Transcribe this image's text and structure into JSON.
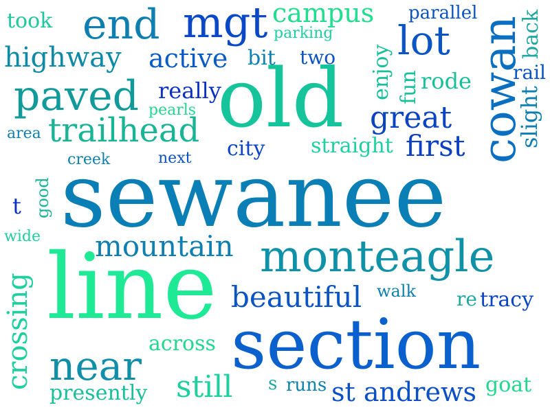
{
  "words": [
    {
      "text": "sewanee",
      "color": "#0a7fb5"
    },
    {
      "text": "line",
      "color": "#1eea96"
    },
    {
      "text": "section",
      "color": "#0a60cc"
    },
    {
      "text": "old",
      "color": "#15c49a"
    },
    {
      "text": "monteagle",
      "color": "#0f91a8"
    },
    {
      "text": "cowan",
      "color": "#0a6fc0"
    },
    {
      "text": "end",
      "color": "#0e7fb0"
    },
    {
      "text": "mgt",
      "color": "#0b48c8"
    },
    {
      "text": "lot",
      "color": "#0a54c4"
    },
    {
      "text": "paved",
      "color": "#129a9a"
    },
    {
      "text": "trailhead",
      "color": "#18b495"
    },
    {
      "text": "near",
      "color": "#118fa8"
    },
    {
      "text": "crossing",
      "color": "#1ed0a0"
    },
    {
      "text": "mountain",
      "color": "#0e7fb0"
    },
    {
      "text": "beautiful",
      "color": "#0a54c4"
    },
    {
      "text": "great",
      "color": "#0a44c0"
    },
    {
      "text": "first",
      "color": "#0b40c4"
    },
    {
      "text": "campus",
      "color": "#22dc90"
    },
    {
      "text": "highway",
      "color": "#0f8aa6"
    },
    {
      "text": "active",
      "color": "#0a5cc4"
    },
    {
      "text": "straight",
      "color": "#1ecfa0"
    },
    {
      "text": "st andrews",
      "color": "#0a50c4"
    },
    {
      "text": "still",
      "color": "#1ed0a0"
    },
    {
      "text": "across",
      "color": "#22d88e"
    },
    {
      "text": "presently",
      "color": "#18c09a"
    },
    {
      "text": "really",
      "color": "#0b30c4"
    },
    {
      "text": "city",
      "color": "#0b44c4"
    },
    {
      "text": "rode",
      "color": "#18c09a"
    },
    {
      "text": "enjoy",
      "color": "#18c09a"
    },
    {
      "text": "fun",
      "color": "#18c09a"
    },
    {
      "text": "back",
      "color": "#1ea8a0"
    },
    {
      "text": "slight",
      "color": "#0e7fb0"
    },
    {
      "text": "rail",
      "color": "#0a54c4"
    },
    {
      "text": "parallel",
      "color": "#0a54c4"
    },
    {
      "text": "parking",
      "color": "#1ecfa0"
    },
    {
      "text": "bit",
      "color": "#0e80b0"
    },
    {
      "text": "two",
      "color": "#0b52c4"
    },
    {
      "text": "took",
      "color": "#1ec89c"
    },
    {
      "text": "pearls",
      "color": "#22d88e"
    },
    {
      "text": "area",
      "color": "#0e80b0"
    },
    {
      "text": "creek",
      "color": "#0e80b0"
    },
    {
      "text": "next",
      "color": "#0b52c4"
    },
    {
      "text": "good",
      "color": "#18b495"
    },
    {
      "text": "t",
      "color": "#0b30c4"
    },
    {
      "text": "wide",
      "color": "#1ecfa0"
    },
    {
      "text": "walk",
      "color": "#0e80b0"
    },
    {
      "text": "re",
      "color": "#1ea8a0"
    },
    {
      "text": "tracy",
      "color": "#0b44c4"
    },
    {
      "text": "s",
      "color": "#1ea8a0"
    },
    {
      "text": "runs",
      "color": "#0e80b0"
    },
    {
      "text": "goat",
      "color": "#22d88e"
    }
  ]
}
